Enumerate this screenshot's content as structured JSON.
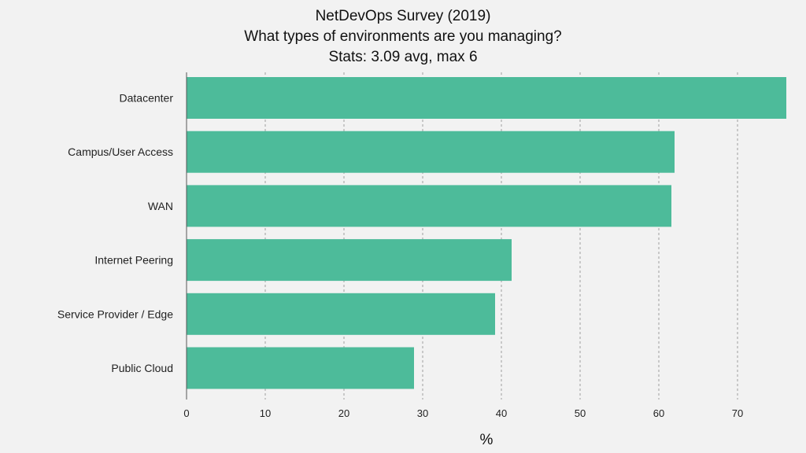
{
  "chart_data": {
    "type": "bar",
    "orientation": "horizontal",
    "title": "NetDevOps Survey (2019)",
    "subtitle": "What types of environments are you managing?",
    "stats_line": "Stats: 3.09 avg, max 6",
    "xlabel": "%",
    "ylabel": "",
    "categories": [
      "Datacenter",
      "Campus/User Access",
      "WAN",
      "Internet Peering",
      "Service Provider / Edge",
      "Public Cloud"
    ],
    "values": [
      76.2,
      62.0,
      61.6,
      41.3,
      39.2,
      28.9
    ],
    "xlim": [
      0,
      78
    ],
    "xticks": [
      0,
      10,
      20,
      30,
      40,
      50,
      60,
      70
    ],
    "grid": "vertical dashed",
    "bar_color": "#4dbb9a"
  }
}
